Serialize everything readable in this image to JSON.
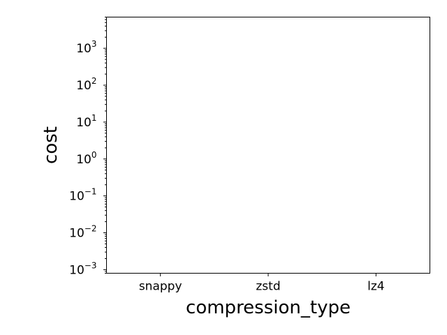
{
  "chart_data": {
    "type": "bar",
    "title": "",
    "xlabel": "compression_type",
    "ylabel": "cost",
    "categories": [
      "snappy",
      "zstd",
      "lz4"
    ],
    "highlight_category": "lz4",
    "highlight_color": "#ff0000",
    "yscale": "log",
    "ylim": [
      0.0008,
      7000
    ],
    "major_tick_exponents": [
      -3,
      -2,
      -1,
      0,
      1,
      2,
      3
    ],
    "tick_base": "10",
    "series": [
      {
        "values": [
          null,
          null,
          null
        ]
      }
    ],
    "grid": false,
    "legend": "none"
  }
}
